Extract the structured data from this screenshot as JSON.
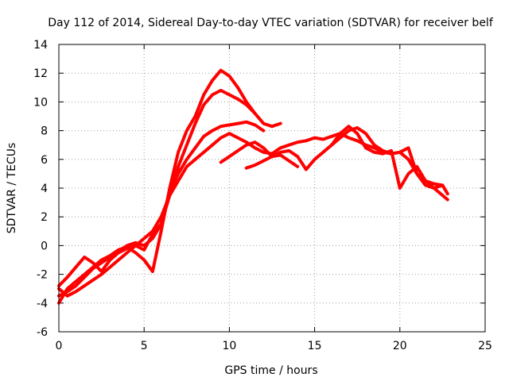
{
  "chart_data": {
    "type": "line",
    "title": "Day 112 of 2014, Sidereal Day-to-day VTEC variation (SDTVAR) for receiver belf",
    "xlabel": "GPS time / hours",
    "ylabel": "SDTVAR / TECUs",
    "xlim": [
      0,
      25
    ],
    "ylim": [
      -6,
      14
    ],
    "xticks": [
      0,
      5,
      10,
      15,
      20,
      25
    ],
    "yticks": [
      -6,
      -4,
      -2,
      0,
      2,
      4,
      6,
      8,
      10,
      12,
      14
    ],
    "xtick_labels": [
      "0",
      "5",
      "10",
      "15",
      "20",
      "25"
    ],
    "ytick_labels": [
      "-6",
      "-4",
      "-2",
      "0",
      "2",
      "4",
      "6",
      "8",
      "10",
      "12",
      "14"
    ],
    "grid": true,
    "legend": "none",
    "color": "#ff0000",
    "series": [
      {
        "name": "track-1",
        "x": [
          0,
          0.5,
          1.0,
          1.5,
          2.0,
          2.5,
          3.0,
          3.5,
          4.0,
          4.5,
          5.0,
          5.5,
          6.0,
          6.5,
          7.0,
          7.5,
          8.0,
          8.5,
          9.0,
          9.5,
          10.0,
          10.5,
          11.0,
          11.5,
          12.0,
          12.5,
          13.0
        ],
        "y": [
          -4.0,
          -3.0,
          -2.5,
          -2.0,
          -1.5,
          -1.0,
          -0.7,
          -0.3,
          -0.1,
          -0.5,
          -1.0,
          -1.8,
          1.0,
          4.0,
          6.5,
          8.0,
          9.0,
          10.5,
          11.5,
          12.2,
          11.8,
          11.0,
          10.0,
          9.2,
          8.5,
          8.3,
          8.5
        ]
      },
      {
        "name": "track-2",
        "x": [
          0,
          0.5,
          1.0,
          1.5,
          2.0,
          2.5,
          3.0,
          3.5,
          4.0,
          4.5,
          5.0,
          5.5,
          6.0,
          6.5,
          7.0,
          7.5,
          8.0,
          8.5,
          9.0,
          9.5,
          10.0,
          10.5,
          11.0,
          11.5
        ],
        "y": [
          -3.5,
          -3.2,
          -2.8,
          -2.2,
          -1.6,
          -1.2,
          -0.8,
          -0.4,
          0.0,
          0.2,
          0.0,
          0.5,
          1.5,
          3.5,
          5.5,
          7.0,
          8.5,
          9.8,
          10.5,
          10.8,
          10.5,
          10.2,
          9.8,
          9.2
        ]
      },
      {
        "name": "track-3",
        "x": [
          0,
          0.5,
          1.0,
          1.5,
          2.0,
          2.5,
          3.0,
          3.5,
          4.0,
          4.5,
          5.0,
          5.5,
          6.0,
          6.5,
          7.0,
          7.5,
          8.0,
          8.5,
          9.0,
          9.5,
          10.0,
          10.5,
          11.0,
          11.5,
          12.0
        ],
        "y": [
          -2.8,
          -2.2,
          -1.5,
          -0.8,
          -1.2,
          -1.8,
          -1.0,
          -0.5,
          -0.2,
          0.0,
          -0.3,
          0.8,
          1.5,
          3.8,
          5.0,
          6.0,
          6.8,
          7.6,
          8.0,
          8.3,
          8.4,
          8.5,
          8.6,
          8.4,
          8.0
        ]
      },
      {
        "name": "track-4",
        "x": [
          0,
          0.5,
          1.0,
          1.5,
          2.0,
          2.5,
          3.0,
          3.5,
          4.0,
          4.5,
          5.0,
          5.5,
          6.0,
          6.5,
          7.0,
          7.5,
          8.0,
          8.5,
          9.0,
          9.5,
          10.0,
          10.5,
          11.0,
          11.5,
          12.0,
          12.5,
          13.0,
          13.5,
          14.0,
          14.5,
          15.0,
          15.5,
          16.0,
          16.5,
          17.0,
          17.5,
          18.0,
          18.5,
          19.0,
          19.5,
          20.0,
          20.5,
          21.0,
          21.5,
          22.0,
          22.5
        ],
        "y": [
          -3.0,
          -3.5,
          -3.2,
          -2.8,
          -2.4,
          -2.0,
          -1.5,
          -1.0,
          -0.5,
          0.0,
          0.5,
          1.0,
          2.0,
          3.5,
          4.5,
          5.5,
          6.0,
          6.5,
          7.0,
          7.5,
          7.8,
          7.5,
          7.2,
          6.8,
          6.5,
          6.4,
          6.8,
          7.0,
          7.2,
          7.3,
          7.5,
          7.4,
          7.6,
          7.8,
          7.5,
          7.3,
          7.0,
          6.8,
          6.5,
          6.4,
          6.5,
          6.0,
          5.0,
          4.5,
          4.3,
          4.2
        ]
      },
      {
        "name": "track-5",
        "x": [
          11.0,
          11.5,
          12.0,
          12.5,
          13.0,
          13.5,
          14.0,
          14.5,
          15.0,
          15.5,
          16.0,
          16.5,
          17.0,
          17.5,
          18.0,
          18.5,
          19.0,
          19.5,
          20.0,
          20.5,
          21.0,
          21.5,
          22.0,
          22.5,
          22.8
        ],
        "y": [
          5.4,
          5.6,
          5.9,
          6.2,
          6.5,
          6.6,
          6.2,
          5.3,
          6.0,
          6.5,
          7.0,
          7.5,
          8.0,
          8.2,
          7.8,
          7.0,
          6.6,
          6.4,
          6.5,
          6.8,
          5.0,
          4.2,
          4.0,
          3.5,
          3.2
        ]
      },
      {
        "name": "track-6",
        "x": [
          9.5,
          10.0,
          10.5,
          11.0,
          11.5,
          12.0,
          12.5,
          13.0,
          13.5,
          14.0
        ],
        "y": [
          5.8,
          6.2,
          6.6,
          7.0,
          7.2,
          6.8,
          6.2,
          6.3,
          5.9,
          5.5
        ]
      },
      {
        "name": "track-7",
        "x": [
          16.0,
          16.5,
          17.0,
          17.5,
          18.0,
          18.5,
          19.0,
          19.5,
          20.0,
          20.5,
          21.0,
          21.5,
          22.0,
          22.5,
          22.8
        ],
        "y": [
          7.0,
          7.8,
          8.3,
          7.8,
          6.8,
          6.5,
          6.4,
          6.6,
          4.0,
          5.0,
          5.5,
          4.5,
          4.0,
          4.2,
          3.6
        ]
      }
    ]
  }
}
